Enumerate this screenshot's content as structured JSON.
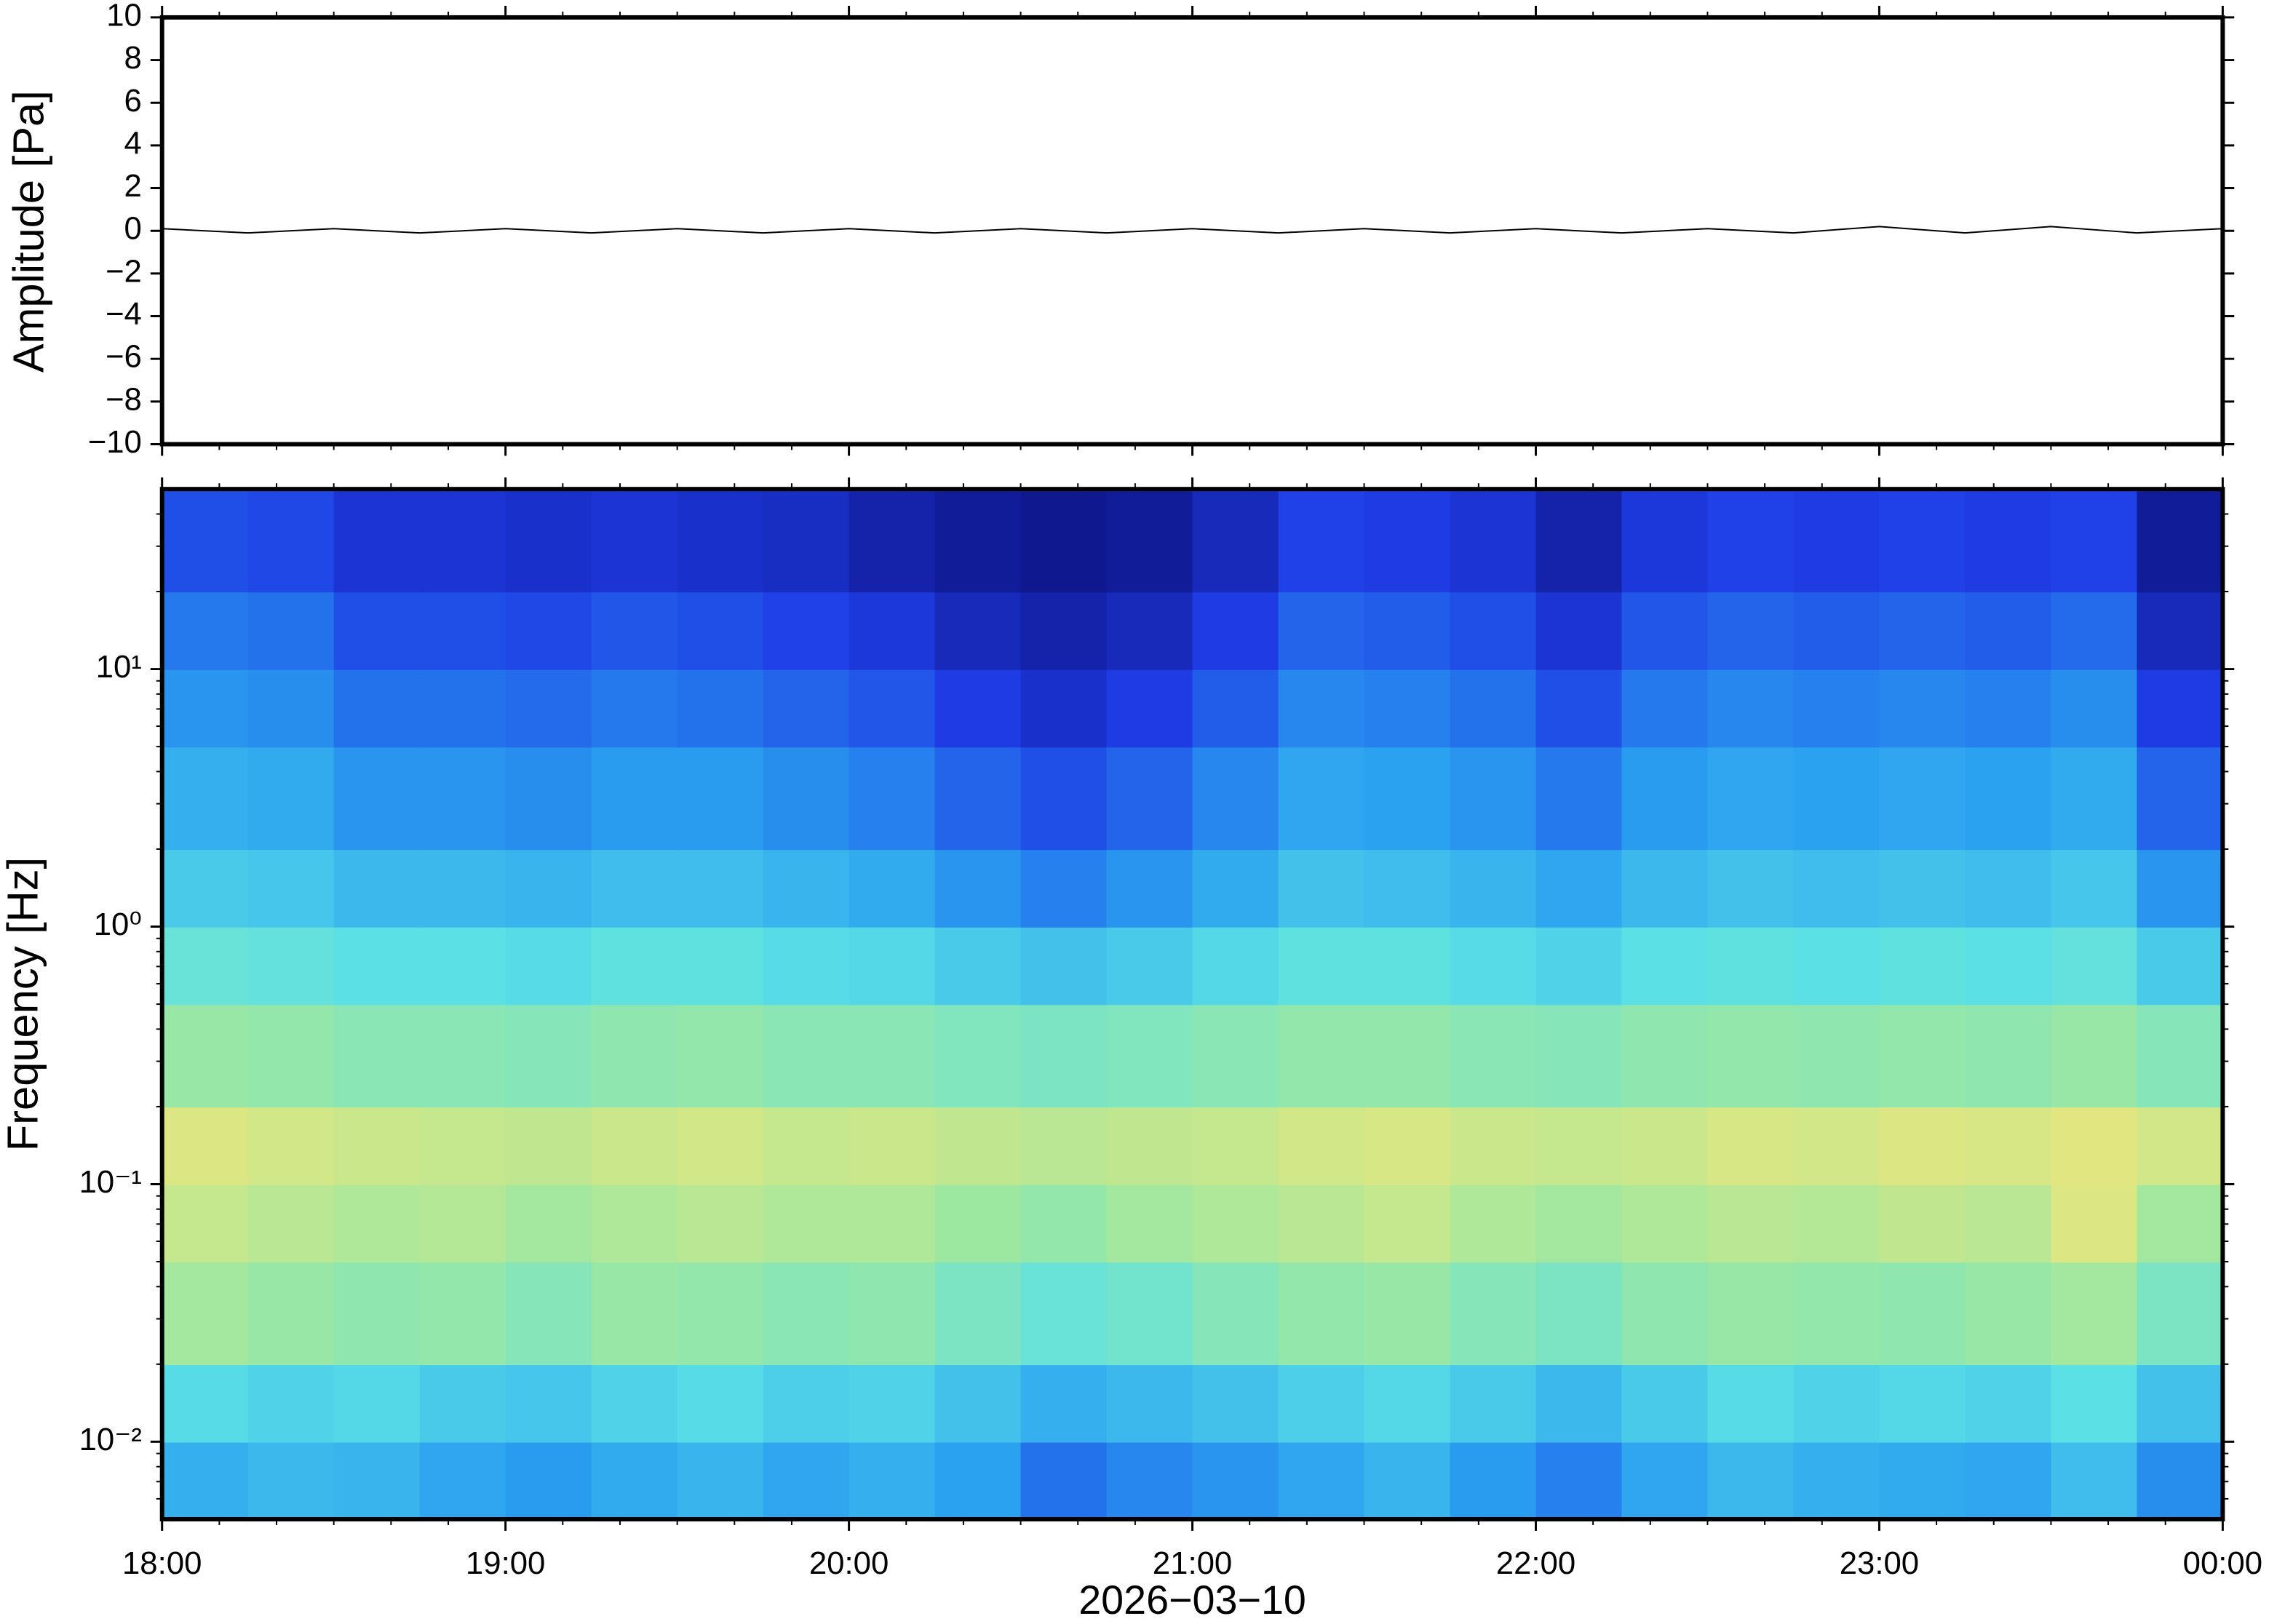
{
  "chart_data": [
    {
      "type": "line",
      "ylabel": "Amplitude [Pa]",
      "xlim": [
        18,
        24
      ],
      "ylim": [
        -10,
        10
      ],
      "yticks": [
        {
          "value": -10,
          "label": "−10"
        },
        {
          "value": -8,
          "label": "−8"
        },
        {
          "value": -6,
          "label": "−6"
        },
        {
          "value": -4,
          "label": "−4"
        },
        {
          "value": -2,
          "label": "−2"
        },
        0,
        2,
        4,
        6,
        8,
        10
      ],
      "x": [
        18,
        18.25,
        18.5,
        18.75,
        19,
        19.25,
        19.5,
        19.75,
        20,
        20.25,
        20.5,
        20.75,
        21,
        21.25,
        21.5,
        21.75,
        22,
        22.25,
        22.5,
        22.75,
        23,
        23.25,
        23.5,
        23.75,
        24
      ],
      "values": [
        0.1,
        -0.1,
        0.1,
        -0.1,
        0.1,
        -0.1,
        0.1,
        -0.1,
        0.1,
        -0.1,
        0.1,
        -0.1,
        0.1,
        -0.1,
        0.1,
        -0.1,
        0.1,
        -0.1,
        0.1,
        -0.1,
        0.2,
        -0.1,
        0.2,
        -0.1,
        0.1
      ],
      "color": "#000000"
    },
    {
      "type": "heatmap",
      "ylabel": "Frequency [Hz]",
      "xlabel": "2026−03−10",
      "xlim": [
        18,
        24
      ],
      "xticks": [
        {
          "value": 18,
          "label": "18:00"
        },
        {
          "value": 19,
          "label": "19:00"
        },
        {
          "value": 20,
          "label": "20:00"
        },
        {
          "value": 21,
          "label": "21:00"
        },
        {
          "value": 22,
          "label": "22:00"
        },
        {
          "value": 23,
          "label": "23:00"
        },
        {
          "value": 24,
          "label": "00:00"
        }
      ],
      "yscale": "log",
      "ylim": [
        0.005,
        50
      ],
      "yticks": [
        {
          "value": 0.01,
          "label": "10⁻²"
        },
        {
          "value": 0.1,
          "label": "10⁻¹"
        },
        {
          "value": 1,
          "label": "10⁰"
        },
        {
          "value": 10,
          "label": "10¹"
        }
      ],
      "colormap": [
        "#0a0a6e",
        "#1e3ce6",
        "#2aa0f0",
        "#5ae0e6",
        "#9ee8a0",
        "#f0e67a",
        "#f5b45a",
        "#e8503c"
      ],
      "x_bins": [
        18,
        18.25,
        18.5,
        18.75,
        19,
        19.25,
        19.5,
        19.75,
        20,
        20.25,
        20.5,
        20.75,
        21,
        21.25,
        21.5,
        21.75,
        22,
        22.25,
        22.5,
        22.75,
        23,
        23.25,
        23.5,
        23.75,
        24
      ],
      "y_bins": [
        0.005,
        0.01,
        0.02,
        0.05,
        0.1,
        0.2,
        0.5,
        1,
        2,
        5,
        10,
        20,
        50
      ],
      "z": [
        [
          0.32,
          0.34,
          0.33,
          0.3,
          0.28,
          0.31,
          0.33,
          0.3,
          0.32,
          0.29,
          0.22,
          0.25,
          0.27,
          0.3,
          0.33,
          0.28,
          0.24,
          0.3,
          0.34,
          0.32,
          0.31,
          0.3,
          0.35,
          0.26
        ],
        [
          0.42,
          0.4,
          0.41,
          0.38,
          0.37,
          0.4,
          0.42,
          0.39,
          0.4,
          0.36,
          0.32,
          0.34,
          0.36,
          0.39,
          0.41,
          0.38,
          0.34,
          0.38,
          0.42,
          0.4,
          0.41,
          0.4,
          0.43,
          0.36
        ],
        [
          0.58,
          0.56,
          0.54,
          0.55,
          0.52,
          0.56,
          0.55,
          0.53,
          0.54,
          0.5,
          0.46,
          0.48,
          0.52,
          0.55,
          0.56,
          0.52,
          0.5,
          0.54,
          0.56,
          0.55,
          0.54,
          0.56,
          0.58,
          0.5
        ],
        [
          0.64,
          0.62,
          0.6,
          0.61,
          0.58,
          0.6,
          0.62,
          0.6,
          0.6,
          0.57,
          0.55,
          0.58,
          0.6,
          0.62,
          0.64,
          0.6,
          0.58,
          0.6,
          0.62,
          0.61,
          0.63,
          0.62,
          0.68,
          0.58
        ],
        [
          0.68,
          0.66,
          0.65,
          0.64,
          0.63,
          0.65,
          0.66,
          0.64,
          0.65,
          0.63,
          0.62,
          0.63,
          0.64,
          0.66,
          0.67,
          0.65,
          0.64,
          0.65,
          0.67,
          0.66,
          0.68,
          0.67,
          0.69,
          0.66
        ],
        [
          0.56,
          0.55,
          0.53,
          0.53,
          0.52,
          0.54,
          0.55,
          0.53,
          0.53,
          0.51,
          0.5,
          0.51,
          0.53,
          0.55,
          0.55,
          0.53,
          0.52,
          0.54,
          0.55,
          0.54,
          0.55,
          0.54,
          0.56,
          0.52
        ],
        [
          0.46,
          0.45,
          0.43,
          0.43,
          0.42,
          0.44,
          0.44,
          0.42,
          0.41,
          0.38,
          0.36,
          0.38,
          0.41,
          0.44,
          0.44,
          0.42,
          0.4,
          0.43,
          0.44,
          0.43,
          0.44,
          0.43,
          0.45,
          0.38
        ],
        [
          0.38,
          0.37,
          0.34,
          0.34,
          0.33,
          0.35,
          0.35,
          0.33,
          0.31,
          0.27,
          0.24,
          0.27,
          0.31,
          0.36,
          0.35,
          0.33,
          0.3,
          0.34,
          0.36,
          0.35,
          0.36,
          0.35,
          0.37,
          0.27
        ],
        [
          0.32,
          0.31,
          0.27,
          0.27,
          0.26,
          0.28,
          0.28,
          0.26,
          0.24,
          0.2,
          0.17,
          0.2,
          0.25,
          0.3,
          0.29,
          0.27,
          0.23,
          0.28,
          0.3,
          0.29,
          0.3,
          0.29,
          0.31,
          0.2
        ],
        [
          0.27,
          0.26,
          0.22,
          0.22,
          0.21,
          0.23,
          0.22,
          0.2,
          0.18,
          0.14,
          0.11,
          0.14,
          0.19,
          0.25,
          0.24,
          0.22,
          0.17,
          0.23,
          0.25,
          0.24,
          0.25,
          0.24,
          0.26,
          0.14
        ],
        [
          0.23,
          0.22,
          0.17,
          0.17,
          0.16,
          0.18,
          0.17,
          0.15,
          0.13,
          0.09,
          0.07,
          0.09,
          0.14,
          0.2,
          0.19,
          0.17,
          0.12,
          0.18,
          0.2,
          0.19,
          0.2,
          0.19,
          0.21,
          0.09
        ],
        [
          0.17,
          0.16,
          0.12,
          0.12,
          0.11,
          0.12,
          0.11,
          0.1,
          0.07,
          0.05,
          0.04,
          0.05,
          0.09,
          0.15,
          0.14,
          0.12,
          0.07,
          0.13,
          0.15,
          0.14,
          0.15,
          0.14,
          0.15,
          0.05
        ]
      ]
    }
  ]
}
